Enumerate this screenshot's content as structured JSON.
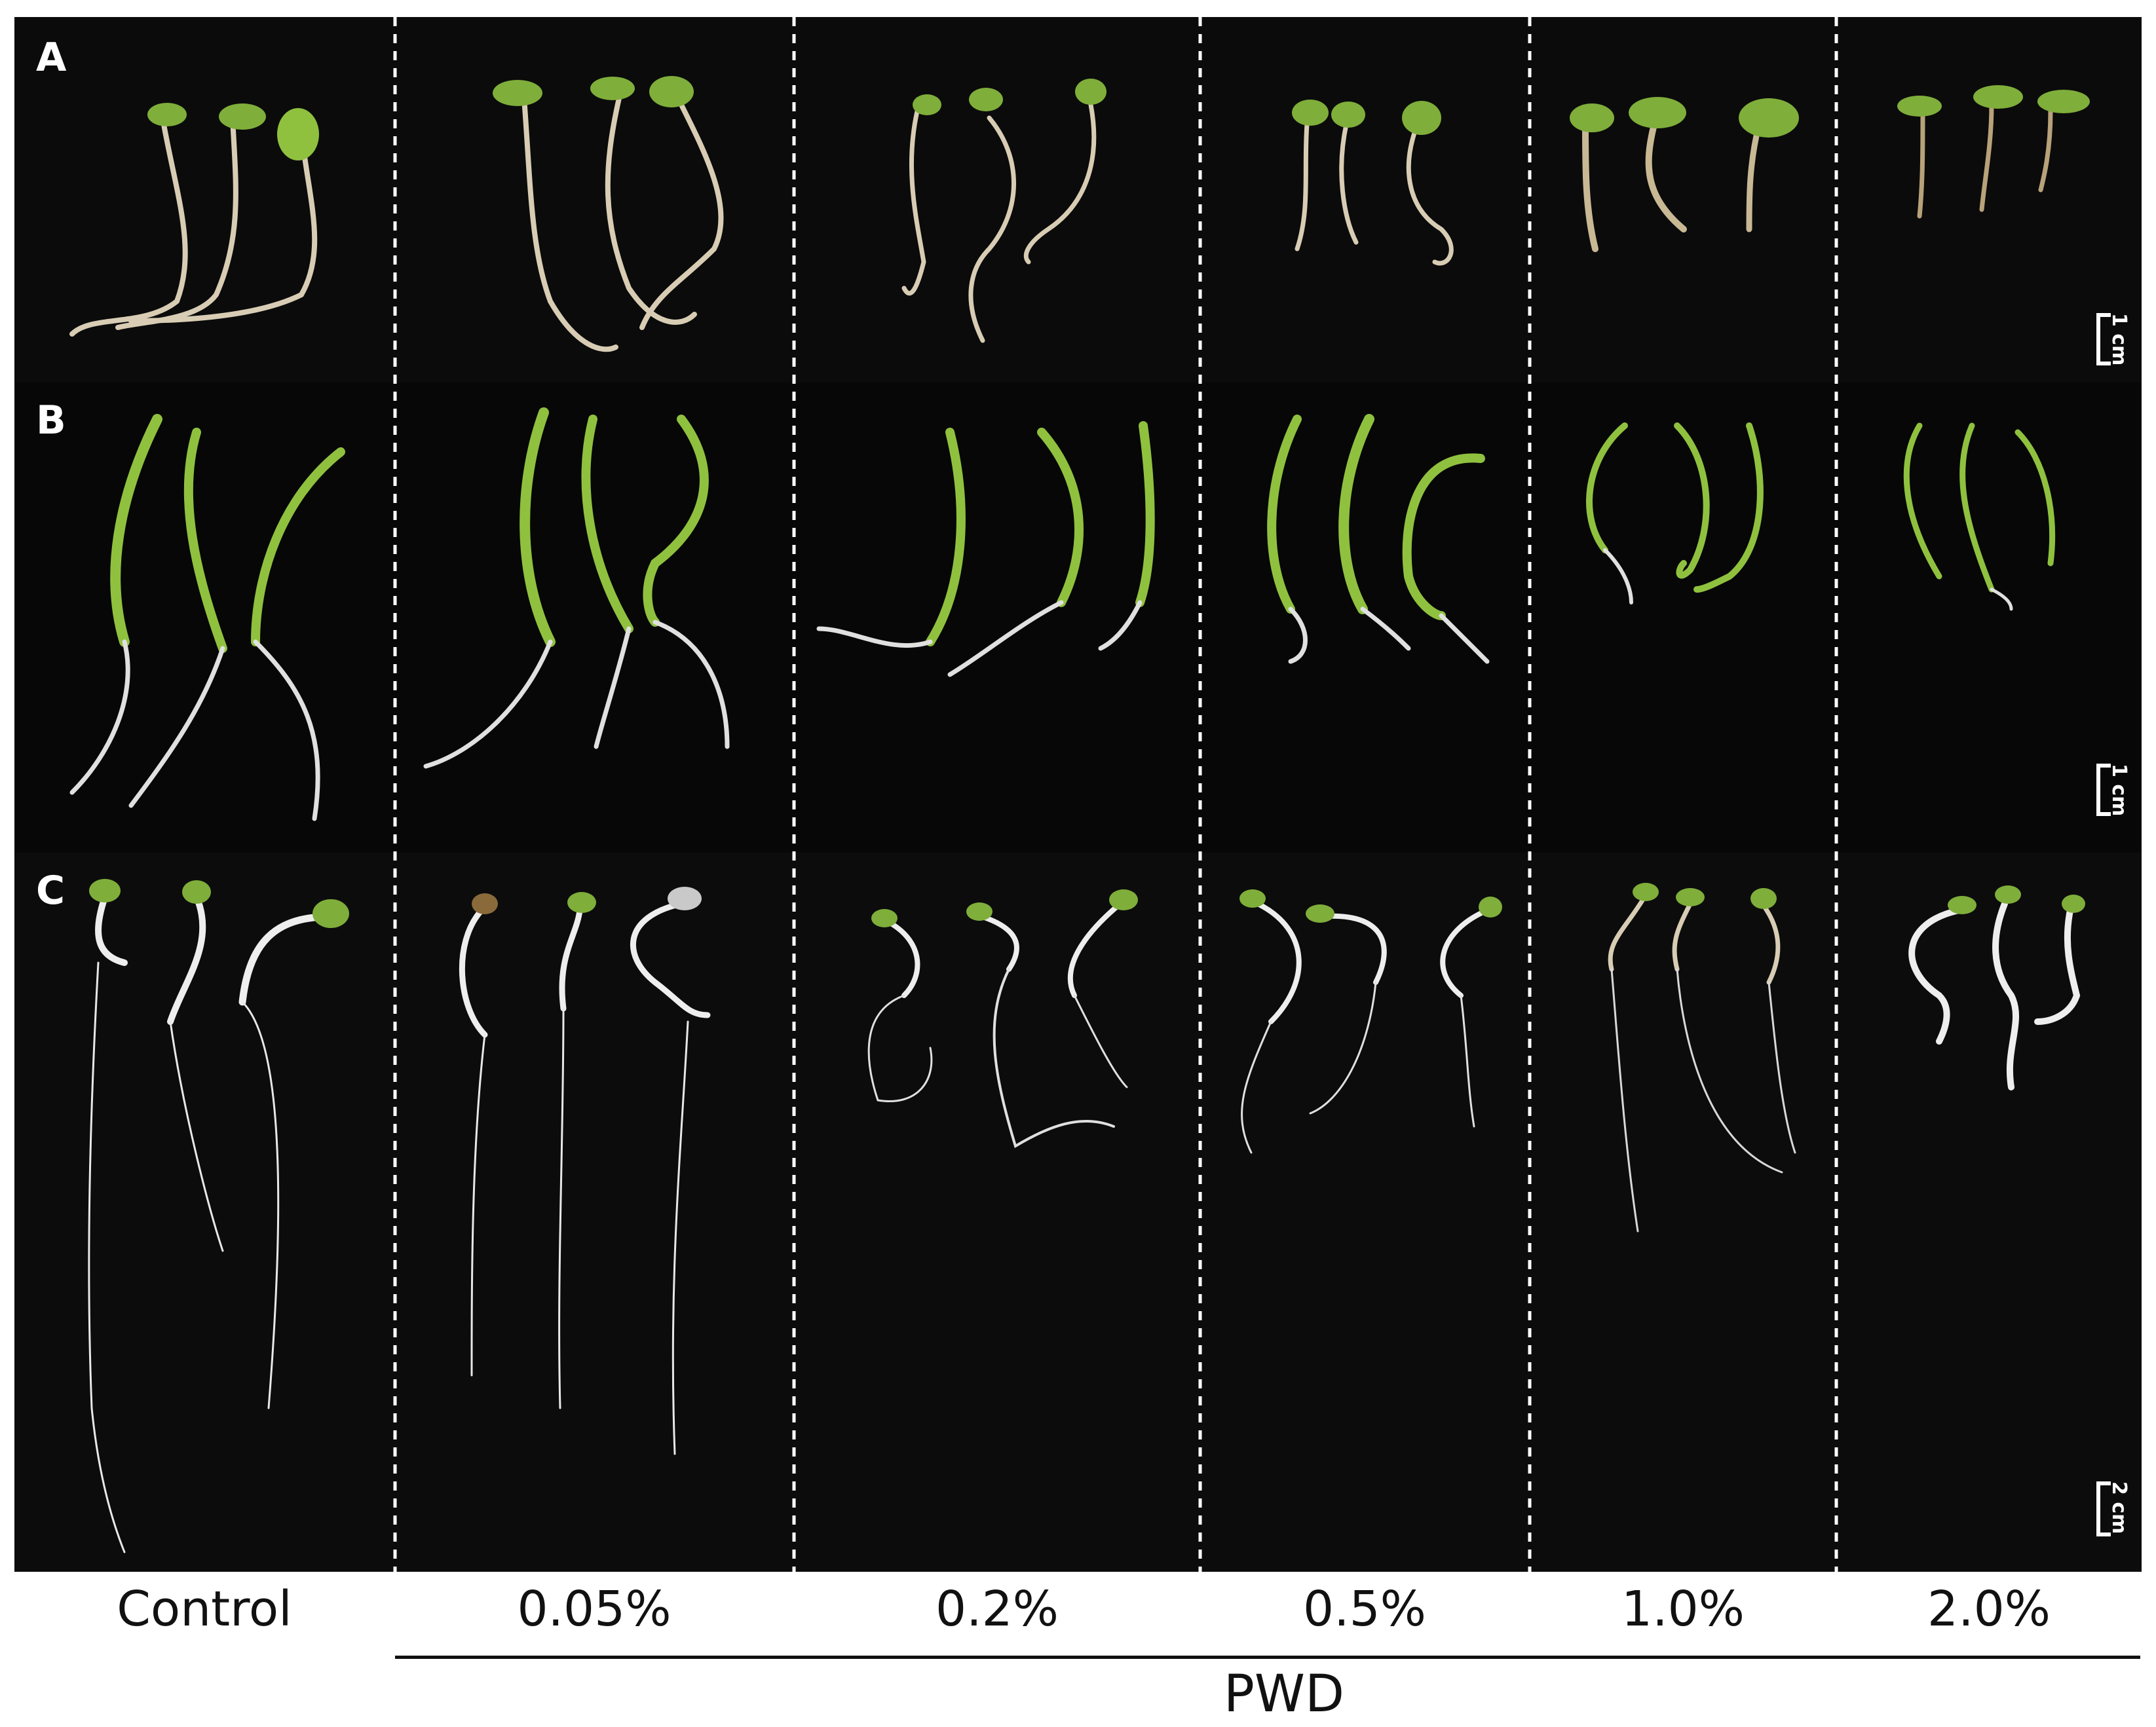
{
  "panel_labels": [
    "A",
    "B",
    "C"
  ],
  "scale_bars": [
    "1 cm",
    "1 cm",
    "2 cm"
  ],
  "columns": [
    "Control",
    "0.05%",
    "0.2%",
    "0.5%",
    "1.0%",
    "2.0%"
  ],
  "group_label": "PWD",
  "colors": {
    "background": "#0b0b0b",
    "stem": "#d8cdb4",
    "leaf": "#7fae3a",
    "root": "#e6e6e6",
    "divider": "#ffffff"
  }
}
